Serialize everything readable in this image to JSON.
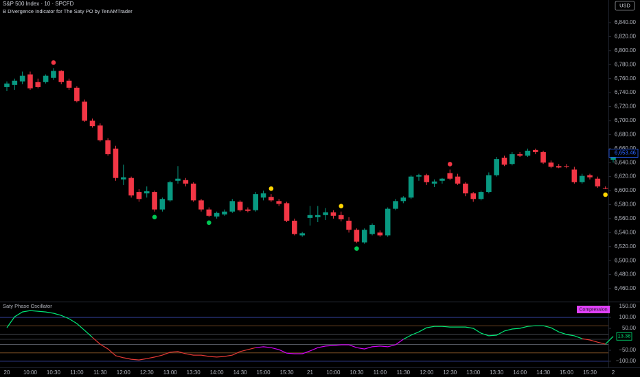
{
  "header": {
    "symbol": "S&P 500 Index · 10 · SPCFD",
    "indicator": "B Divergence Indicator for The Saty PO by TenAMTrader",
    "currency": "USD"
  },
  "chart_data": [
    {
      "type": "candlestick",
      "up_color": "#089981",
      "down_color": "#f23645",
      "categories": [
        "20",
        null,
        null,
        "10:00",
        null,
        null,
        "10:30",
        null,
        null,
        "11:00",
        null,
        null,
        "11:30",
        null,
        null,
        "12:00",
        null,
        null,
        "12:30",
        null,
        null,
        "13:00",
        null,
        null,
        "13:30",
        null,
        null,
        "14:00",
        null,
        null,
        "14:30",
        null,
        null,
        "15:00",
        null,
        null,
        "15:30",
        null,
        null,
        "21",
        null,
        null,
        "10:00",
        null,
        null,
        "10:30",
        null,
        null,
        "11:00",
        null,
        null,
        "11:30",
        null,
        null,
        "12:00",
        null,
        null,
        "12:30",
        null,
        null,
        "13:00",
        null,
        null,
        "13:30",
        null,
        null,
        "14:00",
        null,
        null,
        "14:30",
        null,
        null,
        "15:00",
        null,
        null,
        "15:30",
        null,
        null,
        "2"
      ],
      "ohlc": [
        [
          6748,
          6756,
          6742,
          6753
        ],
        [
          6751,
          6760,
          6744,
          6757
        ],
        [
          6756,
          6770,
          6752,
          6764
        ],
        [
          6766,
          6770,
          6744,
          6746
        ],
        [
          6755,
          6760,
          6746,
          6748
        ],
        [
          6755,
          6766,
          6753,
          6764
        ],
        [
          6761,
          6775,
          6758,
          6771
        ],
        [
          6771,
          6772,
          6752,
          6755
        ],
        [
          6757,
          6760,
          6744,
          6747
        ],
        [
          6747,
          6749,
          6726,
          6728
        ],
        [
          6727,
          6730,
          6698,
          6700
        ],
        [
          6700,
          6703,
          6690,
          6692
        ],
        [
          6693,
          6696,
          6670,
          6672
        ],
        [
          6672,
          6675,
          6650,
          6652
        ],
        [
          6660,
          6664,
          6614,
          6618
        ],
        [
          6616,
          6637,
          6608,
          6619
        ],
        [
          6618,
          6620,
          6590,
          6593
        ],
        [
          6598,
          6602,
          6584,
          6588
        ],
        [
          6596,
          6606,
          6590,
          6599
        ],
        [
          6598,
          6600,
          6570,
          6573
        ],
        [
          6573,
          6590,
          6570,
          6588
        ],
        [
          6586,
          6614,
          6584,
          6612
        ],
        [
          6614,
          6635,
          6610,
          6617
        ],
        [
          6615,
          6618,
          6606,
          6610
        ],
        [
          6610,
          6612,
          6584,
          6586
        ],
        [
          6586,
          6588,
          6570,
          6573
        ],
        [
          6573,
          6576,
          6562,
          6564
        ],
        [
          6563,
          6570,
          6560,
          6568
        ],
        [
          6566,
          6573,
          6564,
          6570
        ],
        [
          6570,
          6588,
          6568,
          6585
        ],
        [
          6584,
          6586,
          6570,
          6572
        ],
        [
          6573,
          6576,
          6569,
          6571
        ],
        [
          6572,
          6598,
          6570,
          6595
        ],
        [
          6590,
          6600,
          6586,
          6596
        ],
        [
          6591,
          6595,
          6584,
          6586
        ],
        [
          6585,
          6588,
          6578,
          6581
        ],
        [
          6582,
          6584,
          6555,
          6557
        ],
        [
          6557,
          6560,
          6536,
          6538
        ],
        [
          6536,
          6541,
          6534,
          6539
        ],
        [
          6561,
          6578,
          6550,
          6565
        ],
        [
          6562,
          6578,
          6555,
          6565
        ],
        [
          6565,
          6575,
          6558,
          6569
        ],
        [
          6569,
          6572,
          6560,
          6564
        ],
        [
          6565,
          6570,
          6556,
          6559
        ],
        [
          6557,
          6562,
          6540,
          6544
        ],
        [
          6544,
          6546,
          6525,
          6527
        ],
        [
          6526,
          6546,
          6524,
          6544
        ],
        [
          6538,
          6553,
          6536,
          6551
        ],
        [
          6540,
          6543,
          6534,
          6536
        ],
        [
          6536,
          6576,
          6534,
          6574
        ],
        [
          6574,
          6588,
          6572,
          6585
        ],
        [
          6585,
          6592,
          6582,
          6590
        ],
        [
          6590,
          6622,
          6588,
          6620
        ],
        [
          6620,
          6624,
          6614,
          6622
        ],
        [
          6622,
          6624,
          6608,
          6612
        ],
        [
          6610,
          6616,
          6605,
          6613
        ],
        [
          6614,
          6618,
          6610,
          6617
        ],
        [
          6625,
          6630,
          6615,
          6617
        ],
        [
          6620,
          6624,
          6608,
          6610
        ],
        [
          6610,
          6612,
          6592,
          6596
        ],
        [
          6596,
          6598,
          6584,
          6588
        ],
        [
          6588,
          6600,
          6586,
          6598
        ],
        [
          6598,
          6626,
          6596,
          6622
        ],
        [
          6622,
          6648,
          6620,
          6645
        ],
        [
          6647,
          6650,
          6635,
          6637
        ],
        [
          6638,
          6655,
          6636,
          6652
        ],
        [
          6652,
          6655,
          6648,
          6650
        ],
        [
          6650,
          6660,
          6648,
          6657
        ],
        [
          6658,
          6660,
          6652,
          6655
        ],
        [
          6655,
          6657,
          6638,
          6640
        ],
        [
          6640,
          6643,
          6632,
          6634
        ],
        [
          6635,
          6638,
          6632,
          6633
        ],
        [
          6635,
          6638,
          6632,
          6634
        ],
        [
          6630,
          6634,
          6610,
          6612
        ],
        [
          6612,
          6624,
          6610,
          6621
        ],
        [
          6622,
          6624,
          6616,
          6619
        ],
        [
          6617,
          6620,
          6604,
          6606
        ],
        [
          6604,
          6606,
          6602,
          6603
        ],
        [
          6644,
          6654,
          6640,
          6653.46
        ]
      ],
      "signals": [
        {
          "index": 6,
          "color": "#f23645",
          "side": "above"
        },
        {
          "index": 19,
          "color": "#00c853",
          "side": "below"
        },
        {
          "index": 26,
          "color": "#00c853",
          "side": "below"
        },
        {
          "index": 34,
          "color": "#ffd600",
          "side": "above"
        },
        {
          "index": 43,
          "color": "#ffd600",
          "side": "above"
        },
        {
          "index": 45,
          "color": "#00c853",
          "side": "below"
        },
        {
          "index": 57,
          "color": "#f23645",
          "side": "above"
        },
        {
          "index": 77,
          "color": "#ffd600",
          "side": "below"
        }
      ],
      "ylim": [
        6441.4,
        6872.3
      ],
      "yticks": [
        {
          "value": 6840,
          "label": "6,840.00"
        },
        {
          "value": 6820,
          "label": "6,820.00"
        },
        {
          "value": 6800,
          "label": "6,800.00"
        },
        {
          "value": 6780,
          "label": "6,780.00"
        },
        {
          "value": 6760,
          "label": "6,760.00"
        },
        {
          "value": 6740,
          "label": "6,740.00"
        },
        {
          "value": 6720,
          "label": "6,720.00"
        },
        {
          "value": 6700,
          "label": "6,700.00"
        },
        {
          "value": 6680,
          "label": "6,680.00"
        },
        {
          "value": 6660,
          "label": "6,660.00"
        },
        {
          "value": 6640,
          "label": "6,640.00"
        },
        {
          "value": 6620,
          "label": "6,620.00"
        },
        {
          "value": 6600,
          "label": "6,600.00"
        },
        {
          "value": 6580,
          "label": "6,580.00"
        },
        {
          "value": 6560,
          "label": "6,560.00"
        },
        {
          "value": 6540,
          "label": "6,540.00"
        },
        {
          "value": 6520,
          "label": "6,520.00"
        },
        {
          "value": 6500,
          "label": "6,500.00"
        },
        {
          "value": 6480,
          "label": "6,480.00"
        },
        {
          "value": 6460,
          "label": "6,460.00"
        }
      ],
      "last_price": {
        "value": 6653.46,
        "label": "6,653.46"
      }
    },
    {
      "type": "line",
      "title": "Saty Phase Oscillator",
      "badge": "Compression",
      "badge_color": "#e040fb",
      "series": [
        {
          "color": "#00e676",
          "values": [
            53,
            103,
            125,
            131,
            128,
            125,
            119,
            109,
            94,
            72,
            41,
            9,
            null,
            null,
            null,
            null,
            null,
            null,
            null,
            null,
            null,
            null,
            null,
            null,
            null,
            null,
            null,
            null,
            null,
            null,
            null,
            null,
            null,
            null,
            null,
            null,
            null,
            null,
            null,
            null,
            null,
            null,
            null,
            null,
            null,
            null,
            null,
            null,
            null,
            null,
            null,
            0,
            19,
            34,
            53,
            59,
            59,
            56,
            56,
            56,
            50,
            28,
            16,
            19,
            38,
            47,
            50,
            59,
            62,
            62,
            53,
            34,
            22,
            16,
            3,
            null,
            null,
            -22,
            13.38
          ]
        },
        {
          "color": "#e53935",
          "values": [
            null,
            null,
            null,
            null,
            null,
            null,
            null,
            null,
            null,
            null,
            null,
            9,
            -22,
            -44,
            -75,
            -84,
            -91,
            -94,
            -88,
            -81,
            -72,
            -59,
            -56,
            -66,
            -72,
            -72,
            -78,
            -81,
            -78,
            -72,
            -56,
            -47,
            -38,
            null,
            null,
            null,
            null,
            null,
            null,
            null,
            null,
            null,
            null,
            null,
            null,
            null,
            null,
            null,
            null,
            null,
            null,
            null,
            null,
            null,
            null,
            null,
            null,
            null,
            null,
            null,
            null,
            null,
            null,
            null,
            null,
            null,
            null,
            null,
            null,
            null,
            null,
            null,
            null,
            null,
            3,
            -3,
            -13,
            -22,
            null
          ]
        },
        {
          "color": "#d500f9",
          "values": [
            null,
            null,
            null,
            null,
            null,
            null,
            null,
            null,
            null,
            null,
            null,
            null,
            null,
            null,
            null,
            null,
            null,
            null,
            null,
            null,
            null,
            null,
            null,
            null,
            null,
            null,
            null,
            null,
            null,
            null,
            null,
            null,
            -38,
            -34,
            -38,
            -47,
            -63,
            -66,
            -66,
            -53,
            -38,
            -31,
            -28,
            -25,
            -25,
            -38,
            -44,
            -34,
            -31,
            -34,
            -25,
            0,
            null,
            null,
            null,
            null,
            null,
            null,
            null,
            null,
            null,
            null,
            null,
            null,
            null,
            null,
            null,
            null,
            null,
            null,
            null,
            null,
            null,
            null,
            null,
            null,
            null,
            null,
            null
          ]
        }
      ],
      "levels": [
        100,
        61.8,
        23.6,
        0,
        -23.6,
        -61.8,
        -100
      ],
      "level_colors": [
        "#3949ab",
        "#8d5a2b",
        "#5d606b",
        "#434651",
        "#5d606b",
        "#8d5a2b",
        "#3949ab"
      ],
      "ylim": [
        -125,
        169
      ],
      "yticks": [
        {
          "value": 150,
          "label": "150.00"
        },
        {
          "value": 100,
          "label": "100.00"
        },
        {
          "value": 50,
          "label": "50.00"
        },
        {
          "value": -50,
          "label": "−50.00"
        },
        {
          "value": -100,
          "label": "−100.00"
        }
      ],
      "last_value": 13.38
    }
  ]
}
